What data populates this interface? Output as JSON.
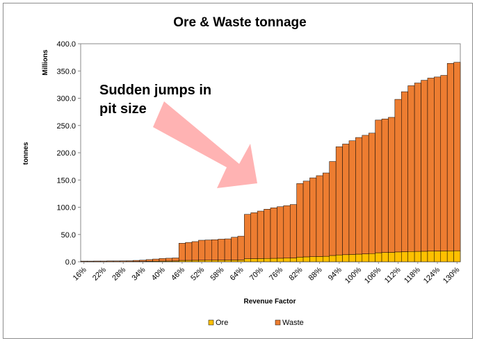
{
  "chart_data": {
    "type": "bar",
    "stacked": true,
    "title": "Ore & Waste tonnage",
    "xlabel": "Revenue Factor",
    "ylabel": "tonnes",
    "yunit": "Millions",
    "ylim": [
      0,
      400
    ],
    "yticks": [
      "0.0",
      "50.0",
      "100.0",
      "150.0",
      "200.0",
      "250.0",
      "300.0",
      "350.0",
      "400.0"
    ],
    "grid": "none",
    "legend_position": "bottom",
    "categories": [
      "16%",
      "18%",
      "20%",
      "22%",
      "24%",
      "26%",
      "28%",
      "30%",
      "32%",
      "34%",
      "36%",
      "38%",
      "40%",
      "42%",
      "44%",
      "46%",
      "48%",
      "50%",
      "52%",
      "54%",
      "56%",
      "58%",
      "60%",
      "62%",
      "64%",
      "66%",
      "68%",
      "70%",
      "72%",
      "74%",
      "76%",
      "78%",
      "80%",
      "82%",
      "84%",
      "86%",
      "88%",
      "90%",
      "92%",
      "94%",
      "96%",
      "98%",
      "100%",
      "102%",
      "104%",
      "106%",
      "108%",
      "110%",
      "112%",
      "114%",
      "116%",
      "118%",
      "120%",
      "122%",
      "124%",
      "126%",
      "128%",
      "130%"
    ],
    "series": [
      {
        "name": "Ore",
        "color": "#ffc000",
        "values": [
          0.2,
          0.2,
          0.2,
          0.2,
          0.3,
          0.3,
          0.3,
          0.4,
          0.5,
          0.6,
          0.8,
          1.0,
          1.2,
          1.3,
          1.4,
          2.5,
          2.6,
          2.7,
          2.8,
          2.9,
          3.0,
          3.0,
          3.1,
          3.2,
          3.3,
          5.5,
          5.7,
          5.9,
          6.1,
          6.3,
          6.5,
          6.7,
          6.9,
          8.5,
          9.0,
          9.3,
          9.6,
          10.0,
          11.5,
          12.5,
          13.0,
          13.5,
          14.0,
          14.5,
          15.0,
          16.5,
          17.0,
          17.2,
          18.0,
          18.5,
          18.8,
          19.0,
          19.2,
          19.5,
          19.7,
          19.9,
          20.0,
          20.2
        ]
      },
      {
        "name": "Waste",
        "color": "#ed7d31",
        "values": [
          1.0,
          1.0,
          1.1,
          1.1,
          1.2,
          1.2,
          1.3,
          1.4,
          2.0,
          2.4,
          3.2,
          4.0,
          4.8,
          5.2,
          5.6,
          31.5,
          32.9,
          34.3,
          36.7,
          37.1,
          37.5,
          38.5,
          38.9,
          41.8,
          43.7,
          81.5,
          84.3,
          87.1,
          90.4,
          92.7,
          94.5,
          96.3,
          98.1,
          135.0,
          139.0,
          144.7,
          148.4,
          153.0,
          172.5,
          198.5,
          203.0,
          208.5,
          214.0,
          217.5,
          221.0,
          243.5,
          245.0,
          247.8,
          280.0,
          293.5,
          304.2,
          309.0,
          313.8,
          317.5,
          319.3,
          322.1,
          344.0,
          345.8
        ]
      }
    ],
    "annotation": {
      "text_line1": "Sudden jumps in",
      "text_line2": "pit size"
    }
  }
}
